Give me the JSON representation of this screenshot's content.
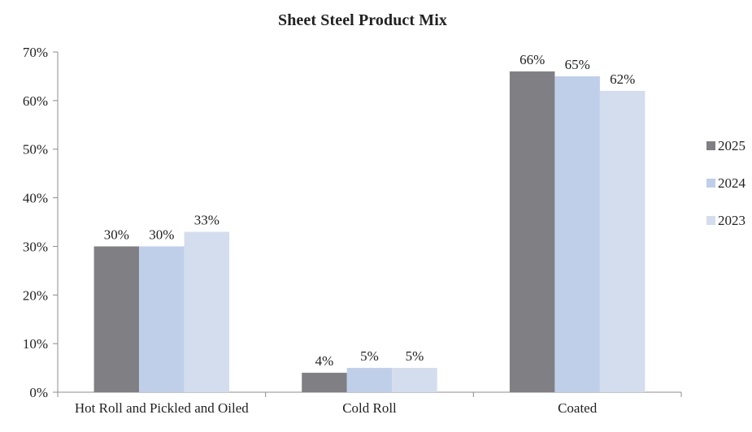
{
  "chart_data": {
    "type": "bar",
    "title": "Sheet Steel Product Mix",
    "categories": [
      "Hot Roll and Pickled and Oiled",
      "Cold Roll",
      "Coated"
    ],
    "series": [
      {
        "name": "2025",
        "values": [
          30,
          4,
          66
        ],
        "color": "#808084"
      },
      {
        "name": "2024",
        "values": [
          30,
          5,
          65
        ],
        "color": "#bfcfea"
      },
      {
        "name": "2023",
        "values": [
          33,
          5,
          62
        ],
        "color": "#d3ddee"
      }
    ],
    "value_suffix": "%",
    "ylim": [
      0,
      70
    ],
    "yticks": [
      0,
      10,
      20,
      30,
      40,
      50,
      60,
      70
    ],
    "grid": false,
    "legend": "right",
    "xlabel": "",
    "ylabel": ""
  }
}
